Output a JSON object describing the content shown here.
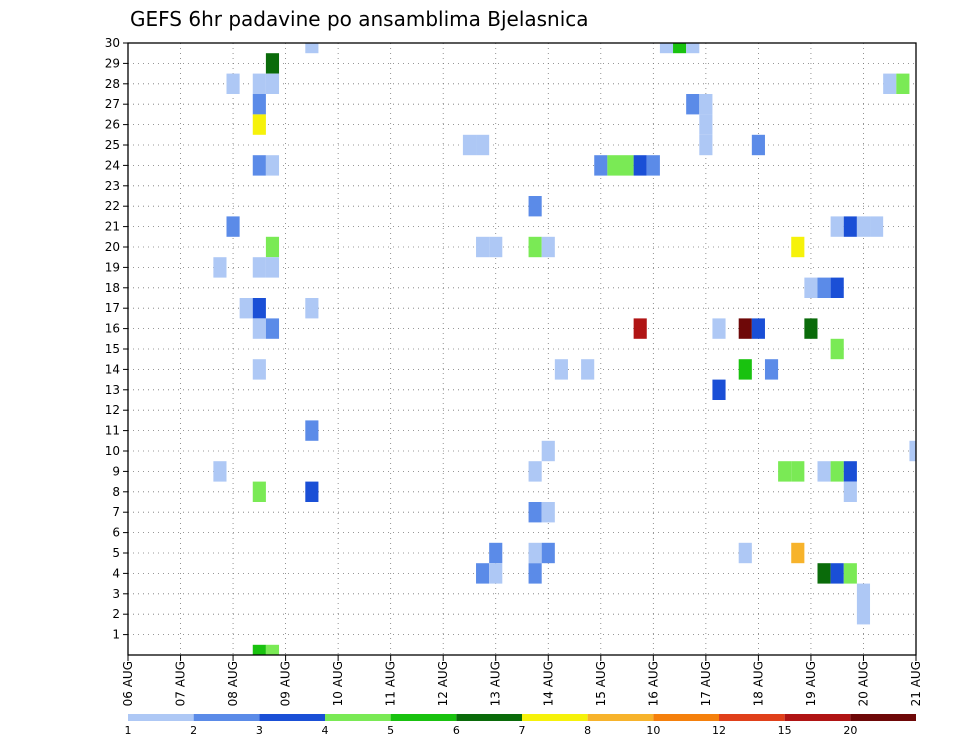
{
  "chart_data": {
    "type": "heatmap",
    "title": "GEFS 6hr padavine po ansamblima Bjelasnica",
    "x_tick_labels": [
      "06 AUG",
      "07 AUG",
      "08 AUG",
      "09 AUG",
      "10 AUG",
      "11 AUG",
      "12 AUG",
      "13 AUG",
      "14 AUG",
      "15 AUG",
      "16 AUG",
      "17 AUG",
      "18 AUG",
      "19 AUG",
      "20 AUG",
      "21 AUG"
    ],
    "y_tick_labels": [
      "1",
      "2",
      "3",
      "4",
      "5",
      "6",
      "7",
      "8",
      "9",
      "10",
      "11",
      "12",
      "13",
      "14",
      "15",
      "16",
      "17",
      "18",
      "19",
      "20",
      "21",
      "22",
      "23",
      "24",
      "25",
      "26",
      "27",
      "28",
      "29",
      "30"
    ],
    "xlim": [
      0,
      60
    ],
    "ylim": [
      0,
      30
    ],
    "grid": true,
    "colorbar": {
      "labels": [
        "1",
        "2",
        "3",
        "4",
        "5",
        "6",
        "7",
        "8",
        "10",
        "12",
        "15",
        "20"
      ],
      "colors": [
        "#aec8f5",
        "#5b8be8",
        "#1a4fd6",
        "#7aea55",
        "#19c20f",
        "#0a6b0a",
        "#f6f20a",
        "#f7b32b",
        "#f5800c",
        "#e0401a",
        "#b01414",
        "#6e0808"
      ]
    },
    "cells": [
      [
        14,
        30,
        0
      ],
      [
        41,
        30,
        0
      ],
      [
        42,
        30,
        4
      ],
      [
        43,
        30,
        0
      ],
      [
        11,
        29,
        5
      ],
      [
        8,
        28,
        0
      ],
      [
        10,
        28,
        0
      ],
      [
        11,
        28,
        0
      ],
      [
        58,
        28,
        0
      ],
      [
        59,
        28,
        3
      ],
      [
        10,
        27,
        1
      ],
      [
        43,
        27,
        1
      ],
      [
        44,
        27,
        0
      ],
      [
        10,
        26,
        6
      ],
      [
        44,
        26,
        0
      ],
      [
        26,
        25,
        0
      ],
      [
        27,
        25,
        0
      ],
      [
        44,
        25,
        0
      ],
      [
        48,
        25,
        1
      ],
      [
        10,
        24,
        1
      ],
      [
        11,
        24,
        0
      ],
      [
        36,
        24,
        1
      ],
      [
        37,
        24,
        3
      ],
      [
        38,
        24,
        3
      ],
      [
        39,
        24,
        2
      ],
      [
        40,
        24,
        1
      ],
      [
        31,
        22,
        1
      ],
      [
        8,
        21,
        1
      ],
      [
        54,
        21,
        0
      ],
      [
        55,
        21,
        2
      ],
      [
        56,
        21,
        0
      ],
      [
        57,
        21,
        0
      ],
      [
        11,
        20,
        3
      ],
      [
        27,
        20,
        0
      ],
      [
        28,
        20,
        0
      ],
      [
        31,
        20,
        3
      ],
      [
        32,
        20,
        0
      ],
      [
        51,
        20,
        6
      ],
      [
        7,
        19,
        0
      ],
      [
        10,
        19,
        0
      ],
      [
        11,
        19,
        0
      ],
      [
        52,
        18,
        0
      ],
      [
        53,
        18,
        1
      ],
      [
        54,
        18,
        2
      ],
      [
        9,
        17,
        0
      ],
      [
        10,
        17,
        2
      ],
      [
        14,
        17,
        0
      ],
      [
        10,
        16,
        0
      ],
      [
        11,
        16,
        1
      ],
      [
        39,
        16,
        10
      ],
      [
        45,
        16,
        0
      ],
      [
        47,
        16,
        11
      ],
      [
        48,
        16,
        2
      ],
      [
        52,
        16,
        5
      ],
      [
        54,
        15,
        3
      ],
      [
        10,
        14,
        0
      ],
      [
        33,
        14,
        0
      ],
      [
        35,
        14,
        0
      ],
      [
        47,
        14,
        4
      ],
      [
        49,
        14,
        1
      ],
      [
        45,
        13,
        2
      ],
      [
        14,
        11,
        1
      ],
      [
        32,
        10,
        0
      ],
      [
        60,
        10,
        0
      ],
      [
        7,
        9,
        0
      ],
      [
        31,
        9,
        0
      ],
      [
        50,
        9,
        3
      ],
      [
        51,
        9,
        3
      ],
      [
        53,
        9,
        0
      ],
      [
        54,
        9,
        3
      ],
      [
        55,
        9,
        2
      ],
      [
        10,
        8,
        3
      ],
      [
        14,
        8,
        2
      ],
      [
        55,
        8,
        0
      ],
      [
        31,
        7,
        1
      ],
      [
        32,
        7,
        0
      ],
      [
        28,
        5,
        1
      ],
      [
        31,
        5,
        0
      ],
      [
        32,
        5,
        1
      ],
      [
        47,
        5,
        0
      ],
      [
        51,
        5,
        7
      ],
      [
        27,
        4,
        1
      ],
      [
        28,
        4,
        0
      ],
      [
        31,
        4,
        1
      ],
      [
        53,
        4,
        5
      ],
      [
        54,
        4,
        2
      ],
      [
        55,
        4,
        3
      ],
      [
        56,
        3,
        0
      ],
      [
        56,
        2,
        0
      ],
      [
        10,
        0,
        4
      ],
      [
        11,
        0,
        3
      ]
    ]
  }
}
